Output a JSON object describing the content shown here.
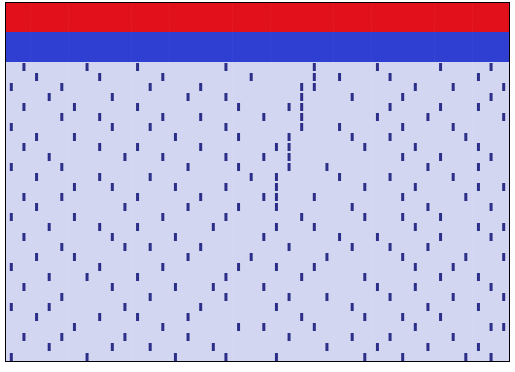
{
  "chart_data": {
    "type": "heatmap",
    "xlim": [
      0,
      40
    ],
    "ylim": [
      0,
      36
    ],
    "tick_labels": false,
    "cells": [
      [
        3,
        3,
        3,
        3,
        3,
        3,
        3,
        3,
        3,
        3,
        3,
        3,
        3,
        3,
        3,
        3,
        3,
        3,
        3,
        3,
        3,
        3,
        3,
        3,
        3,
        3,
        3,
        3,
        3,
        3,
        3,
        3,
        3,
        3,
        3,
        3,
        3,
        3,
        3,
        3
      ],
      [
        3,
        3,
        3,
        3,
        3,
        3,
        3,
        3,
        3,
        3,
        3,
        3,
        3,
        3,
        3,
        3,
        3,
        3,
        3,
        3,
        3,
        3,
        3,
        3,
        3,
        3,
        3,
        3,
        3,
        3,
        3,
        3,
        3,
        3,
        3,
        3,
        3,
        3,
        3,
        3
      ],
      [
        3,
        3,
        3,
        3,
        3,
        3,
        3,
        3,
        3,
        3,
        3,
        3,
        3,
        3,
        3,
        3,
        3,
        3,
        3,
        3,
        3,
        3,
        3,
        3,
        3,
        3,
        3,
        3,
        3,
        3,
        3,
        3,
        3,
        3,
        3,
        3,
        3,
        3,
        3,
        3
      ],
      [
        2,
        2,
        2,
        2,
        2,
        2,
        2,
        2,
        2,
        2,
        2,
        2,
        2,
        2,
        2,
        2,
        2,
        2,
        2,
        2,
        2,
        2,
        2,
        2,
        2,
        2,
        2,
        2,
        2,
        2,
        2,
        2,
        2,
        2,
        2,
        2,
        2,
        2,
        2,
        2
      ],
      [
        2,
        2,
        2,
        2,
        2,
        2,
        2,
        2,
        2,
        2,
        2,
        2,
        2,
        2,
        2,
        2,
        2,
        2,
        2,
        2,
        2,
        2,
        2,
        2,
        2,
        2,
        2,
        2,
        2,
        2,
        2,
        2,
        2,
        2,
        2,
        2,
        2,
        2,
        2,
        2
      ],
      [
        2,
        2,
        2,
        2,
        2,
        2,
        2,
        2,
        2,
        2,
        2,
        2,
        2,
        2,
        2,
        2,
        2,
        2,
        2,
        2,
        2,
        2,
        2,
        2,
        2,
        2,
        2,
        2,
        2,
        2,
        2,
        2,
        2,
        2,
        2,
        2,
        2,
        2,
        2,
        2
      ],
      [
        0,
        1,
        0,
        0,
        0,
        0,
        1,
        0,
        0,
        0,
        1,
        0,
        0,
        0,
        0,
        0,
        0,
        1,
        0,
        0,
        0,
        0,
        0,
        0,
        1,
        0,
        0,
        0,
        0,
        1,
        0,
        0,
        0,
        0,
        1,
        0,
        0,
        0,
        1,
        0
      ],
      [
        0,
        0,
        1,
        0,
        0,
        0,
        0,
        1,
        0,
        0,
        0,
        0,
        1,
        0,
        0,
        0,
        0,
        0,
        0,
        1,
        0,
        0,
        0,
        0,
        1,
        0,
        1,
        0,
        0,
        0,
        1,
        0,
        0,
        0,
        0,
        0,
        0,
        1,
        0,
        0
      ],
      [
        1,
        0,
        0,
        0,
        1,
        0,
        0,
        0,
        0,
        0,
        0,
        1,
        0,
        0,
        0,
        1,
        0,
        0,
        0,
        0,
        0,
        0,
        0,
        1,
        1,
        0,
        0,
        0,
        0,
        0,
        0,
        0,
        1,
        0,
        0,
        1,
        0,
        0,
        0,
        1
      ],
      [
        0,
        0,
        0,
        1,
        0,
        0,
        0,
        0,
        1,
        0,
        0,
        0,
        0,
        0,
        1,
        0,
        0,
        1,
        0,
        0,
        0,
        0,
        0,
        1,
        0,
        0,
        0,
        1,
        0,
        0,
        0,
        1,
        0,
        0,
        0,
        0,
        0,
        0,
        1,
        0
      ],
      [
        0,
        1,
        0,
        0,
        0,
        1,
        0,
        0,
        0,
        0,
        1,
        0,
        0,
        0,
        0,
        0,
        0,
        0,
        1,
        0,
        0,
        0,
        1,
        1,
        0,
        0,
        0,
        0,
        0,
        0,
        1,
        0,
        0,
        0,
        1,
        0,
        0,
        1,
        0,
        0
      ],
      [
        0,
        0,
        0,
        0,
        1,
        0,
        0,
        1,
        0,
        0,
        0,
        0,
        1,
        0,
        0,
        1,
        0,
        0,
        0,
        0,
        1,
        0,
        0,
        1,
        0,
        0,
        0,
        0,
        0,
        1,
        0,
        0,
        0,
        1,
        0,
        0,
        0,
        0,
        0,
        1
      ],
      [
        1,
        0,
        0,
        0,
        0,
        0,
        0,
        0,
        1,
        0,
        0,
        1,
        0,
        0,
        0,
        0,
        0,
        1,
        0,
        0,
        0,
        0,
        0,
        1,
        0,
        0,
        1,
        0,
        0,
        0,
        0,
        1,
        0,
        0,
        0,
        1,
        0,
        0,
        0,
        0
      ],
      [
        0,
        0,
        1,
        0,
        0,
        1,
        0,
        0,
        0,
        0,
        0,
        0,
        0,
        1,
        0,
        0,
        0,
        0,
        1,
        0,
        0,
        0,
        1,
        0,
        0,
        0,
        0,
        1,
        0,
        0,
        1,
        0,
        0,
        0,
        0,
        0,
        1,
        0,
        0,
        0
      ],
      [
        0,
        1,
        0,
        0,
        0,
        0,
        0,
        1,
        0,
        0,
        1,
        0,
        0,
        0,
        0,
        1,
        0,
        0,
        0,
        0,
        0,
        1,
        1,
        0,
        0,
        0,
        0,
        0,
        1,
        0,
        0,
        0,
        1,
        0,
        0,
        0,
        0,
        1,
        0,
        0
      ],
      [
        0,
        0,
        0,
        1,
        0,
        0,
        0,
        0,
        0,
        1,
        0,
        0,
        1,
        0,
        0,
        0,
        0,
        1,
        0,
        0,
        1,
        0,
        1,
        0,
        0,
        0,
        0,
        0,
        0,
        0,
        0,
        1,
        0,
        0,
        1,
        0,
        0,
        0,
        1,
        0
      ],
      [
        1,
        0,
        0,
        0,
        1,
        0,
        0,
        0,
        0,
        0,
        0,
        0,
        0,
        0,
        1,
        0,
        0,
        0,
        1,
        0,
        0,
        0,
        1,
        0,
        0,
        1,
        0,
        0,
        0,
        0,
        0,
        0,
        0,
        1,
        0,
        0,
        0,
        1,
        0,
        0
      ],
      [
        0,
        0,
        1,
        0,
        0,
        0,
        0,
        1,
        0,
        0,
        0,
        1,
        0,
        0,
        0,
        0,
        0,
        0,
        0,
        1,
        0,
        1,
        0,
        0,
        0,
        0,
        1,
        0,
        0,
        0,
        1,
        0,
        0,
        0,
        0,
        1,
        0,
        0,
        0,
        0
      ],
      [
        0,
        0,
        0,
        0,
        0,
        1,
        0,
        0,
        1,
        0,
        0,
        0,
        0,
        1,
        0,
        0,
        0,
        1,
        0,
        0,
        0,
        1,
        0,
        0,
        0,
        0,
        0,
        0,
        1,
        0,
        0,
        0,
        1,
        0,
        0,
        0,
        0,
        1,
        0,
        1
      ],
      [
        0,
        1,
        0,
        0,
        1,
        0,
        0,
        0,
        0,
        0,
        1,
        0,
        0,
        0,
        0,
        1,
        0,
        0,
        0,
        0,
        1,
        1,
        0,
        0,
        1,
        0,
        0,
        0,
        0,
        0,
        0,
        1,
        0,
        0,
        0,
        0,
        1,
        0,
        0,
        0
      ],
      [
        0,
        0,
        1,
        0,
        0,
        0,
        0,
        0,
        0,
        1,
        0,
        0,
        0,
        0,
        1,
        0,
        0,
        0,
        1,
        0,
        0,
        1,
        0,
        0,
        0,
        0,
        0,
        1,
        0,
        0,
        0,
        0,
        0,
        1,
        0,
        0,
        0,
        0,
        1,
        0
      ],
      [
        1,
        0,
        0,
        0,
        0,
        1,
        0,
        0,
        0,
        0,
        0,
        0,
        1,
        0,
        0,
        0,
        0,
        1,
        0,
        0,
        0,
        0,
        0,
        1,
        0,
        0,
        0,
        0,
        1,
        0,
        0,
        1,
        0,
        0,
        1,
        0,
        0,
        0,
        0,
        0
      ],
      [
        0,
        0,
        0,
        1,
        0,
        0,
        0,
        1,
        0,
        0,
        1,
        0,
        0,
        0,
        0,
        0,
        1,
        0,
        0,
        0,
        0,
        1,
        0,
        0,
        1,
        0,
        0,
        0,
        0,
        0,
        0,
        0,
        1,
        0,
        0,
        0,
        0,
        1,
        0,
        1
      ],
      [
        0,
        1,
        0,
        0,
        0,
        0,
        0,
        0,
        1,
        0,
        0,
        0,
        0,
        1,
        0,
        0,
        0,
        0,
        0,
        0,
        1,
        0,
        0,
        0,
        0,
        0,
        1,
        0,
        0,
        1,
        0,
        0,
        0,
        0,
        1,
        0,
        0,
        0,
        1,
        0
      ],
      [
        0,
        0,
        0,
        0,
        1,
        0,
        0,
        0,
        0,
        1,
        0,
        1,
        0,
        0,
        0,
        1,
        0,
        0,
        0,
        0,
        0,
        0,
        1,
        0,
        0,
        0,
        0,
        1,
        0,
        0,
        1,
        0,
        0,
        1,
        0,
        0,
        0,
        0,
        0,
        0
      ],
      [
        0,
        0,
        1,
        0,
        0,
        1,
        0,
        0,
        0,
        0,
        0,
        0,
        0,
        0,
        1,
        0,
        0,
        0,
        0,
        1,
        0,
        0,
        0,
        0,
        0,
        1,
        0,
        0,
        0,
        0,
        0,
        1,
        0,
        0,
        0,
        0,
        1,
        0,
        0,
        1
      ],
      [
        1,
        0,
        0,
        0,
        0,
        0,
        0,
        1,
        0,
        0,
        0,
        0,
        1,
        0,
        0,
        0,
        0,
        0,
        1,
        0,
        0,
        1,
        0,
        0,
        1,
        0,
        0,
        0,
        0,
        0,
        0,
        0,
        1,
        0,
        0,
        1,
        0,
        0,
        0,
        0
      ],
      [
        0,
        0,
        0,
        1,
        0,
        0,
        1,
        0,
        0,
        0,
        1,
        0,
        0,
        0,
        0,
        0,
        0,
        1,
        0,
        0,
        0,
        0,
        0,
        1,
        0,
        0,
        0,
        0,
        1,
        0,
        0,
        0,
        0,
        0,
        1,
        0,
        0,
        1,
        0,
        0
      ],
      [
        0,
        1,
        0,
        0,
        0,
        0,
        0,
        0,
        1,
        0,
        0,
        0,
        0,
        1,
        0,
        0,
        1,
        0,
        0,
        0,
        1,
        0,
        0,
        0,
        0,
        0,
        0,
        0,
        0,
        1,
        0,
        0,
        1,
        0,
        0,
        0,
        0,
        0,
        1,
        0
      ],
      [
        0,
        0,
        0,
        0,
        1,
        0,
        0,
        0,
        0,
        0,
        0,
        1,
        0,
        0,
        0,
        0,
        0,
        1,
        0,
        0,
        0,
        0,
        1,
        0,
        0,
        1,
        0,
        0,
        0,
        0,
        1,
        0,
        0,
        0,
        0,
        1,
        0,
        0,
        0,
        1
      ],
      [
        1,
        0,
        0,
        1,
        0,
        0,
        0,
        0,
        0,
        1,
        0,
        0,
        0,
        0,
        0,
        1,
        0,
        0,
        0,
        0,
        0,
        1,
        0,
        0,
        0,
        0,
        0,
        1,
        0,
        0,
        0,
        0,
        0,
        1,
        0,
        0,
        0,
        1,
        0,
        0
      ],
      [
        0,
        0,
        1,
        0,
        0,
        0,
        0,
        1,
        0,
        0,
        1,
        0,
        0,
        0,
        1,
        0,
        0,
        0,
        0,
        0,
        0,
        0,
        0,
        1,
        0,
        0,
        0,
        0,
        1,
        0,
        0,
        1,
        0,
        0,
        1,
        0,
        0,
        0,
        0,
        0
      ],
      [
        0,
        0,
        0,
        0,
        0,
        1,
        0,
        0,
        0,
        0,
        0,
        0,
        1,
        0,
        0,
        0,
        0,
        0,
        1,
        0,
        1,
        0,
        0,
        0,
        1,
        0,
        0,
        0,
        0,
        0,
        0,
        0,
        1,
        0,
        0,
        0,
        0,
        0,
        1,
        1
      ],
      [
        0,
        1,
        0,
        0,
        1,
        0,
        0,
        0,
        0,
        1,
        0,
        0,
        0,
        0,
        1,
        0,
        0,
        0,
        0,
        0,
        0,
        0,
        1,
        0,
        0,
        0,
        0,
        1,
        0,
        0,
        1,
        0,
        0,
        0,
        0,
        1,
        0,
        0,
        0,
        0
      ],
      [
        0,
        0,
        0,
        1,
        0,
        0,
        0,
        0,
        1,
        0,
        0,
        1,
        0,
        0,
        0,
        0,
        1,
        0,
        0,
        0,
        0,
        0,
        0,
        0,
        0,
        1,
        0,
        0,
        0,
        1,
        0,
        0,
        0,
        1,
        0,
        0,
        0,
        1,
        0,
        0
      ],
      [
        1,
        0,
        0,
        0,
        0,
        0,
        1,
        0,
        0,
        0,
        0,
        0,
        0,
        1,
        0,
        0,
        0,
        1,
        0,
        0,
        0,
        1,
        0,
        0,
        0,
        0,
        0,
        0,
        1,
        0,
        0,
        1,
        0,
        0,
        0,
        0,
        1,
        0,
        1,
        0
      ]
    ]
  }
}
